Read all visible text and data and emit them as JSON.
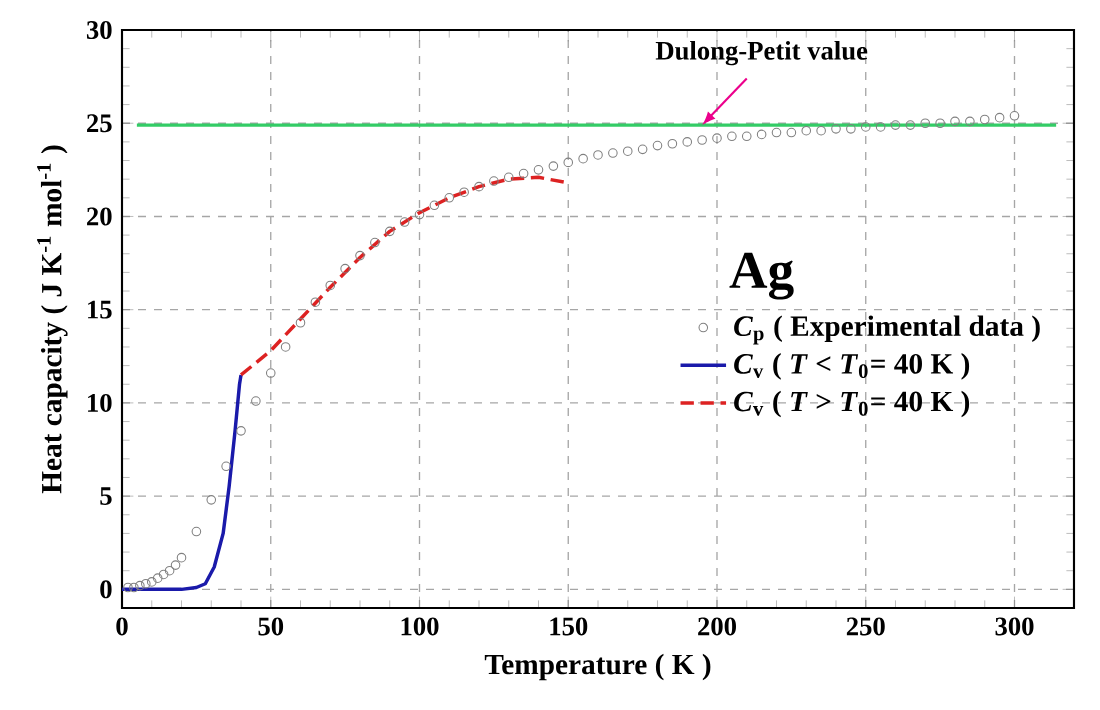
{
  "chart_data": {
    "type": "line",
    "xlabel": "Temperature ( K )",
    "ylabel": "Heat capacity ( J K$^{-1}$ mol$^{-1}$ )",
    "xlim": [
      0,
      320
    ],
    "ylim": [
      -1,
      30
    ],
    "xticks": [
      0,
      50,
      100,
      150,
      200,
      250,
      300
    ],
    "yticks": [
      0,
      5,
      10,
      15,
      20,
      25,
      30
    ],
    "grid": true,
    "legend": "right",
    "annotations": [
      "Ag"
    ],
    "ref_lines": [
      {
        "axis": "y",
        "value": 24.9,
        "label": "Dulong-Petit value",
        "color": "#33cc66"
      }
    ],
    "series": [
      {
        "name": "*C*$_{p}$ ( Experimental data )",
        "type": "scatter",
        "marker": "circle",
        "color": "#808080",
        "x": [
          2,
          4,
          6,
          8,
          10,
          12,
          14,
          16,
          18,
          20,
          25,
          30,
          35,
          40,
          45,
          50,
          55,
          60,
          65,
          70,
          75,
          80,
          85,
          90,
          95,
          100,
          105,
          110,
          115,
          120,
          125,
          130,
          135,
          140,
          145,
          150,
          155,
          160,
          165,
          170,
          175,
          180,
          185,
          190,
          195,
          200,
          205,
          210,
          215,
          220,
          225,
          230,
          235,
          240,
          245,
          250,
          255,
          260,
          265,
          270,
          275,
          280,
          285,
          290,
          295,
          300
        ],
        "values": [
          0.1,
          0.1,
          0.2,
          0.3,
          0.4,
          0.6,
          0.8,
          1.0,
          1.3,
          1.7,
          3.1,
          4.8,
          6.6,
          8.5,
          10.1,
          11.6,
          13.0,
          14.3,
          15.4,
          16.3,
          17.2,
          17.9,
          18.6,
          19.2,
          19.7,
          20.1,
          20.6,
          21.0,
          21.3,
          21.6,
          21.9,
          22.1,
          22.3,
          22.5,
          22.7,
          22.9,
          23.1,
          23.3,
          23.4,
          23.5,
          23.6,
          23.8,
          23.9,
          24.0,
          24.1,
          24.2,
          24.3,
          24.3,
          24.4,
          24.5,
          24.5,
          24.6,
          24.6,
          24.7,
          24.7,
          24.8,
          24.8,
          24.9,
          24.9,
          25.0,
          25.0,
          25.1,
          25.1,
          25.2,
          25.3,
          25.4
        ]
      },
      {
        "name": "*C*$_{v}$ ( *T* < *T*$_{0}$= 40 K )",
        "line_style": "solid",
        "color": "#1a1aaa",
        "x": [
          0,
          10,
          20,
          25,
          28,
          31,
          34,
          36,
          38,
          39.5,
          40
        ],
        "values": [
          0,
          0,
          0,
          0.1,
          0.3,
          1.2,
          3,
          5.5,
          8.5,
          11,
          11.5
        ]
      },
      {
        "name": "*C*$_{v}$ ( *T* > *T*$_{0}$= 40 K )",
        "line_style": "dashed",
        "color": "#dd2222",
        "x": [
          40,
          50,
          60,
          70,
          80,
          90,
          100,
          110,
          120,
          130,
          140,
          150
        ],
        "values": [
          11.5,
          12.8,
          14.5,
          16.2,
          17.8,
          19.2,
          20.2,
          21.0,
          21.6,
          22.0,
          22.1,
          21.8
        ]
      }
    ]
  }
}
